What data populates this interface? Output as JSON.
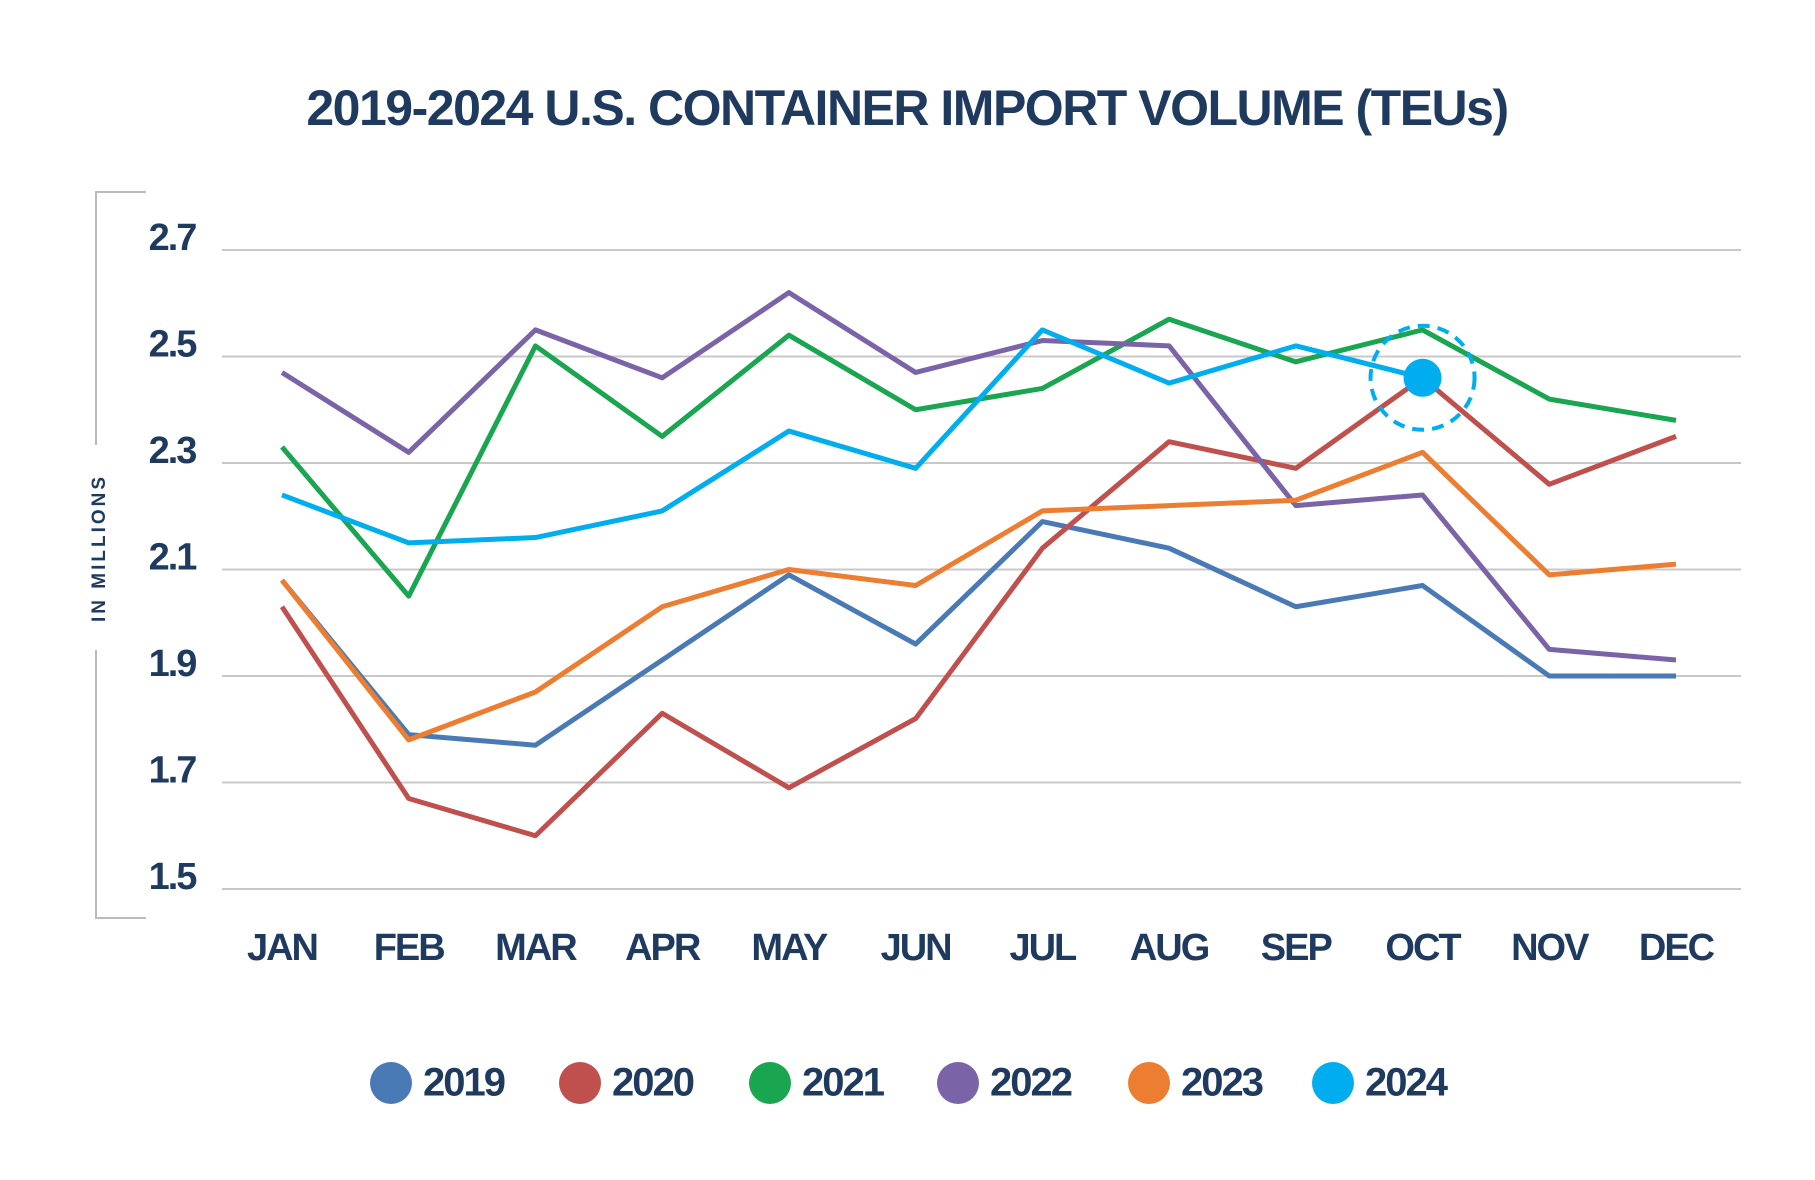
{
  "chart_data": {
    "type": "line",
    "title": "2019-2024 U.S. CONTAINER IMPORT VOLUME (TEUs)",
    "y_label": "IN MILLIONS",
    "categories": [
      "JAN",
      "FEB",
      "MAR",
      "APR",
      "MAY",
      "JUN",
      "JUL",
      "AUG",
      "SEP",
      "OCT",
      "NOV",
      "DEC"
    ],
    "series": [
      {
        "name": "2019",
        "color": "#4a7ab5",
        "values": [
          2.08,
          1.79,
          1.77,
          1.93,
          2.09,
          1.96,
          2.19,
          2.14,
          2.03,
          2.07,
          1.9,
          1.9
        ]
      },
      {
        "name": "2020",
        "color": "#c0504d",
        "values": [
          2.03,
          1.67,
          1.6,
          1.83,
          1.69,
          1.82,
          2.14,
          2.34,
          2.29,
          2.46,
          2.26,
          2.35
        ]
      },
      {
        "name": "2021",
        "color": "#1aa550",
        "values": [
          2.33,
          2.05,
          2.52,
          2.35,
          2.54,
          2.4,
          2.44,
          2.57,
          2.49,
          2.55,
          2.42,
          2.38
        ]
      },
      {
        "name": "2022",
        "color": "#7b63a8",
        "values": [
          2.47,
          2.32,
          2.55,
          2.46,
          2.62,
          2.47,
          2.53,
          2.52,
          2.22,
          2.24,
          1.95,
          1.93
        ]
      },
      {
        "name": "2023",
        "color": "#ed7d31",
        "values": [
          2.08,
          1.78,
          1.87,
          2.03,
          2.1,
          2.07,
          2.21,
          2.22,
          2.23,
          2.32,
          2.09,
          2.11
        ]
      },
      {
        "name": "2024",
        "color": "#00aeef",
        "values": [
          2.24,
          2.15,
          2.16,
          2.21,
          2.36,
          2.29,
          2.55,
          2.45,
          2.52,
          2.46,
          null,
          null
        ]
      }
    ],
    "ylim": [
      1.5,
      2.7
    ],
    "yticks": [
      2.7,
      2.5,
      2.3,
      2.1,
      1.9,
      1.7,
      1.5
    ],
    "grid": true,
    "highlight": {
      "series": "2024",
      "category": "OCT"
    }
  }
}
